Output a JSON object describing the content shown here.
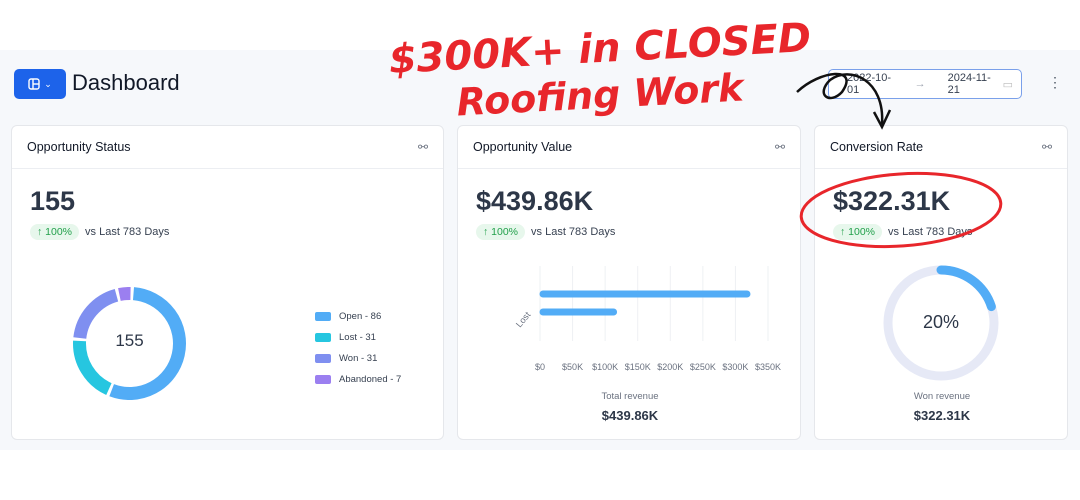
{
  "header": {
    "title": "Dashboard",
    "menu_icon": "layout-icon",
    "date_from": "2022-10-01",
    "date_to": "2024-11-21"
  },
  "cards": [
    {
      "title": "Opportunity Status",
      "value": "155",
      "trend": "↑ 100%",
      "compare": "vs Last 783 Days",
      "donut_center": "155",
      "legend": [
        {
          "label": "Open - 86",
          "value": 86,
          "color": "#52acf6"
        },
        {
          "label": "Lost - 31",
          "value": 31,
          "color": "#26c6e0"
        },
        {
          "label": "Won - 31",
          "value": 31,
          "color": "#7f8ff0"
        },
        {
          "label": "Abandoned - 7",
          "value": 7,
          "color": "#9b7ff0"
        }
      ]
    },
    {
      "title": "Opportunity Value",
      "value": "$439.86K",
      "trend": "↑ 100%",
      "compare": "vs Last 783 Days",
      "footer_label": "Total revenue",
      "footer_value": "$439.86K"
    },
    {
      "title": "Conversion Rate",
      "value": "$322.31K",
      "trend": "↑ 100%",
      "compare": "vs Last 783 Days",
      "gauge_label": "20%",
      "gauge_value": 0.2,
      "footer_label": "Won revenue",
      "footer_value": "$322.31K"
    }
  ],
  "chart_data": {
    "type": "bar",
    "orientation": "horizontal",
    "category_label": "Lost",
    "values": [
      322.31,
      117.55
    ],
    "unit": "$K",
    "xlim": [
      0,
      350
    ],
    "ticks": [
      "$0",
      "$50K",
      "$100K",
      "$150K",
      "$200K",
      "$250K",
      "$300K",
      "$350K"
    ],
    "color": "#52acf6",
    "grid": true
  },
  "annotation": {
    "line1": "$300K+ in CLOSED",
    "line2": "Roofing Work",
    "color": "#e8262b"
  }
}
